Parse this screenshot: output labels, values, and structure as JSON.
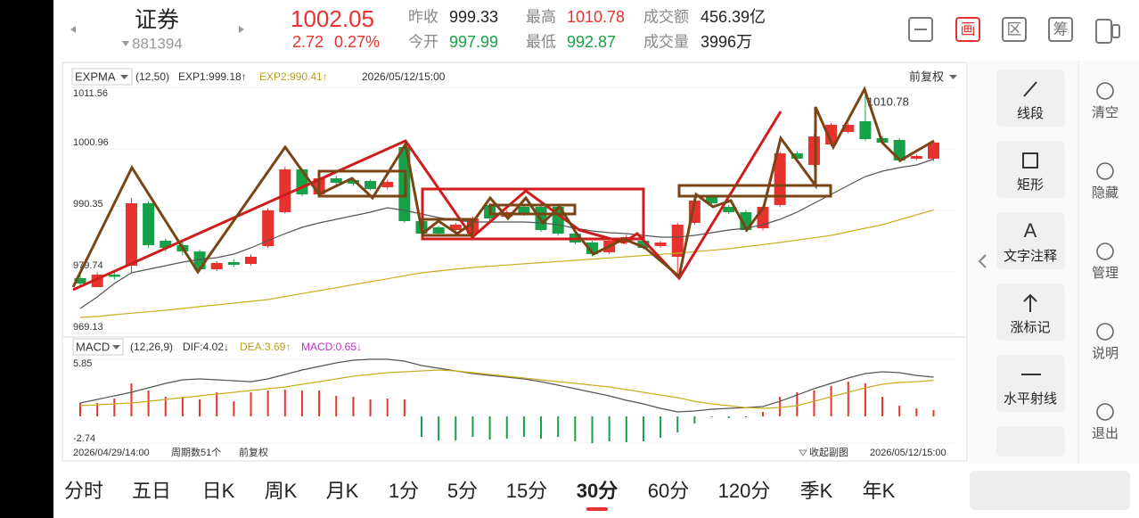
{
  "header": {
    "name": "证券",
    "code": "881394",
    "price": "1002.05",
    "change": "2.72",
    "change_percent": "0.27%",
    "stats": [
      [
        "昨收",
        "999.33"
      ],
      [
        "今开",
        "997.99"
      ],
      [
        "最高",
        "1010.78"
      ],
      [
        "最低",
        "992.87"
      ],
      [
        "成交额",
        "456.39亿"
      ],
      [
        "成交量",
        "3996万"
      ]
    ],
    "buttons": [
      "画",
      "区",
      "筹"
    ]
  },
  "chart_data": [
    {
      "type": "candlestick",
      "indicator": "EXPMA",
      "params": "(12,50)",
      "time": "2026/05/12/15:00",
      "adjustment": "前复权",
      "categories": [
        "2026/04/29/14:00",
        null,
        null,
        null,
        null,
        null,
        null,
        null,
        null,
        null,
        null,
        null,
        null,
        null,
        null,
        null,
        null,
        null,
        null,
        null,
        null,
        null,
        null,
        null,
        null,
        null,
        null,
        null,
        null,
        null,
        null,
        null,
        null,
        null,
        null,
        null,
        null,
        null,
        null,
        null,
        null,
        null,
        null,
        null,
        null,
        null,
        null,
        null,
        null,
        null,
        "2026/05/12/15:00"
      ],
      "open": [
        978.66,
        977.12,
        979.28,
        980.81,
        991.58,
        985.12,
        984.35,
        983.27,
        980.2,
        981.43,
        981.12,
        984.2,
        990.04,
        997.42,
        993.11,
        995.88,
        995.57,
        995.42,
        994.34,
        1001.26,
        988.5,
        987.42,
        986.96,
        986.35,
        991.27,
        989.27,
        990.96,
        990.96,
        990.96,
        986.35,
        984.81,
        983.12,
        984.81,
        985.12,
        984.2,
        982.35,
        988.19,
        992.81,
        990.96,
        990.04,
        987.27,
        991.27,
        1000.18,
        998.19,
        1001.72,
        1003.87,
        1005.72,
        1002.8,
        1002.49,
        999.26,
        999.26
      ],
      "close": [
        977.74,
        979.28,
        978.9,
        991.58,
        984.35,
        983.89,
        983.27,
        980.2,
        981.28,
        980.97,
        982.35,
        990.35,
        997.42,
        993.11,
        995.88,
        995.11,
        994.96,
        994.03,
        995.26,
        988.5,
        986.35,
        986.35,
        987.89,
        988.96,
        988.96,
        990.04,
        989.73,
        986.96,
        986.35,
        984.81,
        982.81,
        985.12,
        985.73,
        983.89,
        984.81,
        987.89,
        992.04,
        991.58,
        990.04,
        986.96,
        990.96,
        1000.18,
        999.26,
        1003.1,
        1005.1,
        1005.1,
        1002.64,
        1002.03,
        998.95,
        999.72,
        1002.05
      ],
      "high": [
        979.3,
        979.7,
        979.7,
        992.5,
        991.9,
        985.5,
        985.0,
        983.6,
        981.6,
        981.9,
        982.8,
        990.7,
        997.9,
        997.6,
        996.2,
        996.3,
        995.9,
        995.7,
        995.6,
        1002.0,
        988.8,
        987.7,
        988.2,
        989.3,
        991.6,
        990.4,
        991.3,
        991.3,
        991.3,
        986.7,
        985.1,
        985.5,
        986.1,
        985.4,
        985.1,
        988.2,
        992.4,
        993.1,
        991.3,
        990.4,
        991.3,
        1000.5,
        1000.5,
        1003.5,
        1005.4,
        1005.4,
        1010.78,
        1003.1,
        1002.8,
        1000.0,
        1002.4
      ],
      "low": [
        977.1,
        977.1,
        978.4,
        979.7,
        983.9,
        983.3,
        982.6,
        979.8,
        979.9,
        980.6,
        980.9,
        983.9,
        989.8,
        992.8,
        992.8,
        994.8,
        994.6,
        993.8,
        994.0,
        988.2,
        986.0,
        986.0,
        986.6,
        986.0,
        988.6,
        989.0,
        989.4,
        986.6,
        986.0,
        984.5,
        982.4,
        982.8,
        984.5,
        983.6,
        983.9,
        978.97,
        987.9,
        991.2,
        989.7,
        986.6,
        986.9,
        990.9,
        998.9,
        997.9,
        1001.4,
        1003.6,
        1002.3,
        1001.7,
        998.6,
        999.0,
        998.9
      ],
      "up_color": "#e8322e",
      "down_color": "#16a047",
      "series": [
        {
          "name": "EXP1:999.18↑",
          "color": "#555555",
          "values": [
            973.44,
            975.43,
            977.74,
            979.58,
            980.2,
            980.81,
            981.43,
            981.89,
            982.2,
            982.81,
            983.89,
            985.12,
            986.35,
            987.42,
            988.19,
            988.81,
            989.42,
            990.04,
            990.81,
            990.35,
            989.73,
            989.12,
            988.65,
            988.35,
            988.35,
            988.35,
            988.35,
            988.19,
            987.89,
            987.27,
            986.81,
            986.5,
            986.35,
            986.04,
            985.73,
            985.73,
            986.04,
            986.5,
            986.96,
            987.27,
            987.89,
            988.81,
            990.04,
            991.58,
            993.11,
            994.65,
            996.19,
            997.11,
            997.72,
            998.19,
            999.18
          ]
        },
        {
          "name": "EXP2:990.41↑",
          "color": "#c8b020",
          "values": [
            971.9,
            972.05,
            972.36,
            972.62,
            972.87,
            973.13,
            973.44,
            973.75,
            974.05,
            974.36,
            974.67,
            974.97,
            975.49,
            976.0,
            976.51,
            977.02,
            977.54,
            978.05,
            978.56,
            979.08,
            979.59,
            979.9,
            980.21,
            980.51,
            980.72,
            980.92,
            981.13,
            981.33,
            981.54,
            981.74,
            981.95,
            982.15,
            982.35,
            982.56,
            982.76,
            982.97,
            983.23,
            983.48,
            983.74,
            984.1,
            984.46,
            984.81,
            985.22,
            985.63,
            986.04,
            986.65,
            987.27,
            987.89,
            988.73,
            989.57,
            990.41
          ]
        }
      ],
      "ylim": [
        969.13,
        1011.56
      ],
      "yticks": [
        1011.56,
        1000.96,
        990.35,
        979.74,
        969.13
      ],
      "grid": true
    },
    {
      "type": "macd",
      "indicator": "MACD",
      "params": "(12,26,9)",
      "value_name": "MACD:0.65↓",
      "value_color": "#c030c0",
      "values": [
        1.37,
        1.37,
        1.83,
        3.38,
        2.65,
        2.01,
        2.01,
        1.74,
        2.47,
        1.55,
        2.47,
        2.65,
        2.74,
        2.65,
        2.65,
        2.1,
        2.01,
        1.74,
        1.83,
        1.74,
        -2.1,
        -2.47,
        -2.47,
        -2.1,
        -2.38,
        -2.29,
        -2.1,
        -2.29,
        -2.1,
        -2.56,
        -2.74,
        -2.56,
        -2.65,
        -2.56,
        -2.19,
        -1.65,
        -0.73,
        -0.09,
        -0.18,
        -0.09,
        0.46,
        2.01,
        2.47,
        2.65,
        3.11,
        3.56,
        3.38,
        2.01,
        1.1,
        0.82,
        0.65
      ],
      "up_color": "#e8322e",
      "down_color": "#16a047",
      "series": [
        {
          "name": "DIF:4.02↓",
          "color": "#555555",
          "values": [
            1.37,
            1.74,
            2.1,
            2.47,
            2.93,
            3.38,
            3.75,
            3.84,
            3.75,
            3.66,
            3.56,
            3.84,
            4.3,
            4.75,
            5.12,
            5.48,
            5.76,
            5.85,
            5.85,
            5.67,
            5.21,
            4.94,
            4.66,
            4.39,
            4.2,
            4.02,
            3.84,
            3.56,
            3.2,
            2.83,
            2.47,
            2.1,
            1.65,
            1.28,
            0.82,
            0.46,
            0.55,
            0.73,
            0.82,
            0.91,
            1.01,
            1.55,
            2.19,
            2.83,
            3.38,
            3.93,
            4.39,
            4.57,
            4.48,
            4.2,
            4.02
          ]
        },
        {
          "name": "DEA:3.69↑",
          "color": "#c8b020",
          "values": [
            1.1,
            1.19,
            1.28,
            1.37,
            1.55,
            1.74,
            1.92,
            2.1,
            2.29,
            2.47,
            2.65,
            2.83,
            3.02,
            3.29,
            3.56,
            3.84,
            4.11,
            4.3,
            4.48,
            4.57,
            4.66,
            4.75,
            4.66,
            4.48,
            4.3,
            4.11,
            3.93,
            3.75,
            3.56,
            3.38,
            3.2,
            3.02,
            2.74,
            2.47,
            2.19,
            1.92,
            1.55,
            1.28,
            1.1,
            0.91,
            0.82,
            0.91,
            1.1,
            1.55,
            2.01,
            2.47,
            2.93,
            3.29,
            3.47,
            3.56,
            3.69
          ]
        }
      ],
      "ylim": [
        -2.74,
        5.85
      ],
      "yticks": [
        5.85,
        -2.74
      ]
    }
  ],
  "footer": {
    "periods": "周期数51个",
    "adjustment": "前复权",
    "collapse": "收起副图"
  },
  "tools": [
    "线段",
    "矩形",
    "文字注释",
    "涨标记",
    "水平射线"
  ],
  "tool_glyph": "A",
  "side_actions": [
    "清空",
    "隐藏",
    "管理",
    "说明",
    "退出"
  ],
  "tabs": [
    "分时",
    "五日",
    "日K",
    "周K",
    "月K",
    "1分",
    "5分",
    "15分",
    "30分",
    "60分",
    "120分",
    "季K",
    "年K"
  ],
  "active_tab": 8
}
